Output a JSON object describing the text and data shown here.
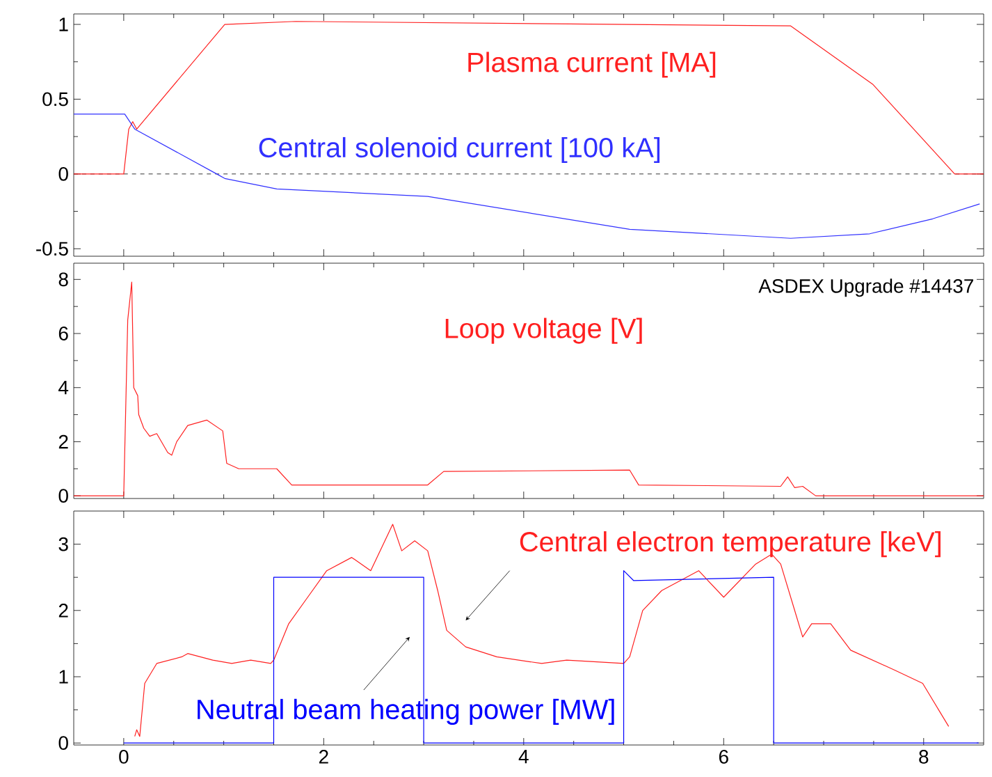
{
  "chart_data": [
    {
      "type": "line",
      "x": [
        -0.5,
        0.0,
        0.05,
        0.09,
        0.13,
        1.01,
        1.72,
        6.67,
        7.49,
        8.31,
        8.6
      ],
      "xlim": [
        -0.5,
        8.6
      ],
      "xticks": [
        0,
        2,
        4,
        6,
        8
      ],
      "ylim": [
        -0.55,
        1.07
      ],
      "yticks": [
        -0.5,
        0,
        0.5,
        1
      ],
      "tick_labels": "y",
      "ref_lines": [
        {
          "axis": "y",
          "value": 0,
          "color": "#000000",
          "line_style": "dashed"
        }
      ],
      "series": [
        {
          "name": "Plasma current [MA]",
          "color": "#ff2020",
          "values": [
            0,
            0,
            0.3,
            0.35,
            0.3,
            1.0,
            1.02,
            0.99,
            0.6,
            0,
            0
          ]
        },
        {
          "name": "Central solenoid current  [100 kA]",
          "color": "#3030ff",
          "x": [
            -0.5,
            0.01,
            0.11,
            0.93,
            1.01,
            1.53,
            3.04,
            5.06,
            6.67,
            7.46,
            8.09,
            8.56
          ],
          "values": [
            0.4,
            0.4,
            0.3,
            0,
            -0.03,
            -0.1,
            -0.15,
            -0.37,
            -0.43,
            -0.4,
            -0.3,
            -0.2
          ]
        }
      ]
    },
    {
      "type": "line",
      "x": [
        -0.5,
        0.0,
        0.04,
        0.08,
        0.1,
        0.14,
        0.15,
        0.2,
        0.26,
        0.33,
        0.44,
        0.48,
        0.53,
        0.64,
        0.83,
        0.99,
        1.03,
        1.15,
        1.53,
        1.68,
        3.04,
        3.2,
        5.06,
        5.15,
        6.57,
        6.64,
        6.71,
        6.79,
        6.92,
        8.6
      ],
      "xlim": [
        -0.5,
        8.6
      ],
      "xticks": [
        0,
        2,
        4,
        6,
        8
      ],
      "ylim": [
        -0.1,
        8.6
      ],
      "yticks": [
        0,
        2,
        4,
        6,
        8
      ],
      "tick_labels": "y",
      "annotations": [
        "ASDEX Upgrade #14437"
      ],
      "series": [
        {
          "name": "Loop voltage [V]",
          "color": "#ff2020",
          "values": [
            0,
            0,
            6.5,
            7.9,
            4,
            3.7,
            3.0,
            2.5,
            2.2,
            2.3,
            1.6,
            1.5,
            2.0,
            2.6,
            2.8,
            2.4,
            1.2,
            1.0,
            1.0,
            0.4,
            0.4,
            0.9,
            0.95,
            0.4,
            0.35,
            0.7,
            0.3,
            0.35,
            0,
            0
          ]
        }
      ]
    },
    {
      "type": "line",
      "xlim": [
        -0.5,
        8.6
      ],
      "xticks": [
        0,
        2,
        4,
        6,
        8
      ],
      "ylim": [
        -0.03,
        3.5
      ],
      "yticks": [
        0,
        1,
        2,
        3
      ],
      "series": [
        {
          "name": "Central electron temperature [keV]",
          "color": "#ff2020",
          "x": [
            0.11,
            0.13,
            0.16,
            0.21,
            0.33,
            0.58,
            0.64,
            0.89,
            1.08,
            1.27,
            1.47,
            1.5,
            1.65,
            1.84,
            2.03,
            2.28,
            2.47,
            2.69,
            2.78,
            2.91,
            3.04,
            3.14,
            3.23,
            3.42,
            3.73,
            4.18,
            4.43,
            5.0,
            5.06,
            5.19,
            5.38,
            5.75,
            6.0,
            6.32,
            6.48,
            6.57,
            6.71,
            6.79,
            6.88,
            7.07,
            7.27,
            7.71,
            7.99,
            8.15,
            8.25
          ],
          "values": [
            0.1,
            0.2,
            0.1,
            0.9,
            1.2,
            1.3,
            1.35,
            1.25,
            1.2,
            1.25,
            1.2,
            1.25,
            1.8,
            2.2,
            2.6,
            2.8,
            2.6,
            3.3,
            2.9,
            3.05,
            2.9,
            2.3,
            1.7,
            1.45,
            1.3,
            1.2,
            1.25,
            1.2,
            1.3,
            2.0,
            2.3,
            2.6,
            2.2,
            2.7,
            2.85,
            2.7,
            2.0,
            1.6,
            1.8,
            1.8,
            1.4,
            1.1,
            0.9,
            0.5,
            0.25
          ]
        },
        {
          "name": "Neutral beam heating power [MW]",
          "color": "#0000ff",
          "x": [
            0,
            1.5,
            1.5,
            3.0,
            3.0,
            5.0,
            5.0,
            5.1,
            6.5,
            6.5,
            8.55
          ],
          "values": [
            0,
            0,
            2.5,
            2.5,
            0,
            0,
            2.6,
            2.45,
            2.5,
            0,
            0
          ]
        }
      ]
    }
  ]
}
